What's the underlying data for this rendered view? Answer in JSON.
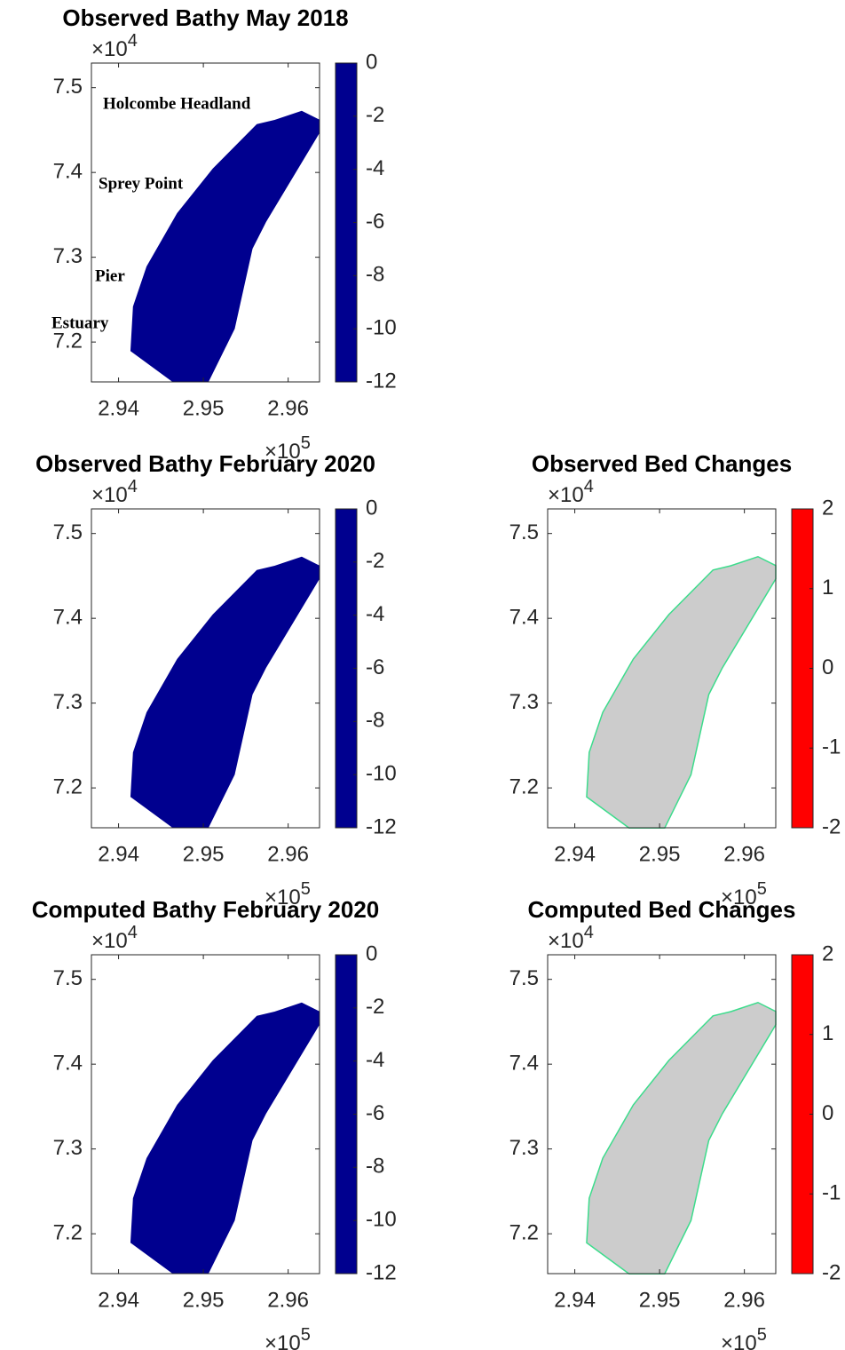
{
  "chart_data": [
    {
      "type": "map",
      "title": "Observed Bathy May 2018",
      "x_scale": {
        "base": "×10",
        "exponent": "5"
      },
      "y_scale": {
        "base": "×10",
        "exponent": "4"
      },
      "xlim": [
        2.9368,
        2.9637
      ],
      "ylim": [
        7.153,
        7.529
      ],
      "xticks": [
        2.94,
        2.95,
        2.96
      ],
      "yticks": [
        7.2,
        7.3,
        7.4,
        7.5
      ],
      "domain": {
        "x": [
          2.9414,
          2.9417,
          2.9433,
          2.9469,
          2.9511,
          2.9563,
          2.9584,
          2.9616,
          2.9637,
          2.9637,
          2.9574,
          2.9558,
          2.9537,
          2.9506,
          2.9464
        ],
        "y": [
          7.1894,
          7.2419,
          7.2891,
          7.352,
          7.4045,
          7.457,
          7.462,
          7.4727,
          7.4622,
          7.4465,
          7.3416,
          7.3101,
          7.2156,
          7.1527,
          7.1527
        ]
      },
      "annotations": [
        "Holcombe Headland",
        "Sprey Point",
        "Pier",
        "Estuary"
      ],
      "colorbar": {
        "lim": [
          -12,
          0
        ],
        "ticks": [
          0,
          -2,
          -4,
          -6,
          -8,
          -10,
          -12
        ],
        "color_stops": [
          {
            "value": -12,
            "color": "#00008f"
          },
          {
            "value": -10.5,
            "color": "#0000ff"
          },
          {
            "value": -7.5,
            "color": "#00ffff"
          },
          {
            "value": -4.5,
            "color": "#ffff00"
          },
          {
            "value": -1.5,
            "color": "#ff0000"
          },
          {
            "value": 0,
            "color": "#800000"
          }
        ]
      }
    },
    {
      "type": "map",
      "title": "Observed Bathy February 2020",
      "x_scale": {
        "base": "×10",
        "exponent": "5"
      },
      "y_scale": {
        "base": "×10",
        "exponent": "4"
      },
      "xlim": [
        2.9368,
        2.9637
      ],
      "ylim": [
        7.153,
        7.529
      ],
      "xticks": [
        2.94,
        2.95,
        2.96
      ],
      "yticks": [
        7.2,
        7.3,
        7.4,
        7.5
      ],
      "domain": {
        "x": [
          2.9414,
          2.9417,
          2.9433,
          2.9469,
          2.9511,
          2.9563,
          2.9584,
          2.9616,
          2.9637,
          2.9637,
          2.9574,
          2.9558,
          2.9537,
          2.9506,
          2.9464
        ],
        "y": [
          7.1894,
          7.2419,
          7.2891,
          7.352,
          7.4045,
          7.457,
          7.462,
          7.4727,
          7.4622,
          7.4465,
          7.3416,
          7.3101,
          7.2156,
          7.1527,
          7.1527
        ]
      },
      "colorbar": {
        "lim": [
          -12,
          0
        ],
        "ticks": [
          0,
          -2,
          -4,
          -6,
          -8,
          -10,
          -12
        ],
        "color_stops": [
          {
            "value": -12,
            "color": "#00008f"
          },
          {
            "value": -10.5,
            "color": "#0000ff"
          },
          {
            "value": -7.5,
            "color": "#00ffff"
          },
          {
            "value": -4.5,
            "color": "#ffff00"
          },
          {
            "value": -1.5,
            "color": "#ff0000"
          },
          {
            "value": 0,
            "color": "#800000"
          }
        ]
      }
    },
    {
      "type": "map",
      "title": "Observed Bed Changes",
      "fill": "#cccccc",
      "x_scale": {
        "base": "×10",
        "exponent": "5"
      },
      "y_scale": {
        "base": "×10",
        "exponent": "4"
      },
      "xlim": [
        2.9368,
        2.9637
      ],
      "ylim": [
        7.153,
        7.529
      ],
      "xticks": [
        2.94,
        2.95,
        2.96
      ],
      "yticks": [
        7.2,
        7.3,
        7.4,
        7.5
      ],
      "domain": {
        "x": [
          2.9414,
          2.9417,
          2.9433,
          2.9469,
          2.9511,
          2.9563,
          2.9584,
          2.9616,
          2.9637,
          2.9637,
          2.9574,
          2.9558,
          2.9537,
          2.9506,
          2.9464
        ],
        "y": [
          7.1894,
          7.2419,
          7.2891,
          7.352,
          7.4045,
          7.457,
          7.462,
          7.4727,
          7.4622,
          7.4465,
          7.3416,
          7.3101,
          7.2156,
          7.1527,
          7.1527
        ]
      },
      "colorbar": {
        "lim": [
          -2,
          2
        ],
        "ticks": [
          2,
          1,
          0,
          -1,
          -2
        ],
        "color_stops": [
          {
            "value": -2,
            "color": "#ff0000"
          },
          {
            "value": -0.2,
            "color": "#ffff00"
          },
          {
            "value": -0.2,
            "color": "#cccccc"
          },
          {
            "value": 0.2,
            "color": "#cccccc"
          },
          {
            "value": 0.2,
            "color": "#00e68c"
          },
          {
            "value": 1,
            "color": "#1e8fb0"
          },
          {
            "value": 2,
            "color": "#0028ff"
          }
        ]
      }
    },
    {
      "type": "map",
      "title": "Computed Bathy February 2020",
      "x_scale": {
        "base": "×10",
        "exponent": "5"
      },
      "y_scale": {
        "base": "×10",
        "exponent": "4"
      },
      "xlim": [
        2.9368,
        2.9637
      ],
      "ylim": [
        7.153,
        7.529
      ],
      "xticks": [
        2.94,
        2.95,
        2.96
      ],
      "yticks": [
        7.2,
        7.3,
        7.4,
        7.5
      ],
      "domain": {
        "x": [
          2.9414,
          2.9417,
          2.9433,
          2.9469,
          2.9511,
          2.9563,
          2.9584,
          2.9616,
          2.9637,
          2.9637,
          2.9574,
          2.9558,
          2.9537,
          2.9506,
          2.9464
        ],
        "y": [
          7.1894,
          7.2419,
          7.2891,
          7.352,
          7.4045,
          7.457,
          7.462,
          7.4727,
          7.4622,
          7.4465,
          7.3416,
          7.3101,
          7.2156,
          7.1527,
          7.1527
        ]
      },
      "colorbar": {
        "lim": [
          -12,
          0
        ],
        "ticks": [
          0,
          -2,
          -4,
          -6,
          -8,
          -10,
          -12
        ],
        "color_stops": [
          {
            "value": -12,
            "color": "#00008f"
          },
          {
            "value": -10.5,
            "color": "#0000ff"
          },
          {
            "value": -7.5,
            "color": "#00ffff"
          },
          {
            "value": -4.5,
            "color": "#ffff00"
          },
          {
            "value": -1.5,
            "color": "#ff0000"
          },
          {
            "value": 0,
            "color": "#800000"
          }
        ]
      }
    },
    {
      "type": "map",
      "title": "Computed Bed Changes",
      "fill": "#cccccc",
      "x_scale": {
        "base": "×10",
        "exponent": "5"
      },
      "y_scale": {
        "base": "×10",
        "exponent": "4"
      },
      "xlim": [
        2.9368,
        2.9637
      ],
      "ylim": [
        7.153,
        7.529
      ],
      "xticks": [
        2.94,
        2.95,
        2.96
      ],
      "yticks": [
        7.2,
        7.3,
        7.4,
        7.5
      ],
      "domain": {
        "x": [
          2.9414,
          2.9417,
          2.9433,
          2.9469,
          2.9511,
          2.9563,
          2.9584,
          2.9616,
          2.9637,
          2.9637,
          2.9574,
          2.9558,
          2.9537,
          2.9506,
          2.9464
        ],
        "y": [
          7.1894,
          7.2419,
          7.2891,
          7.352,
          7.4045,
          7.457,
          7.462,
          7.4727,
          7.4622,
          7.4465,
          7.3416,
          7.3101,
          7.2156,
          7.1527,
          7.1527
        ]
      },
      "colorbar": {
        "lim": [
          -2,
          2
        ],
        "ticks": [
          2,
          1,
          0,
          -1,
          -2
        ],
        "color_stops": [
          {
            "value": -2,
            "color": "#ff0000"
          },
          {
            "value": -0.2,
            "color": "#ffff00"
          },
          {
            "value": -0.2,
            "color": "#cccccc"
          },
          {
            "value": 0.2,
            "color": "#cccccc"
          },
          {
            "value": 0.2,
            "color": "#00e68c"
          },
          {
            "value": 1,
            "color": "#1e8fb0"
          },
          {
            "value": 2,
            "color": "#0028ff"
          }
        ]
      }
    }
  ]
}
